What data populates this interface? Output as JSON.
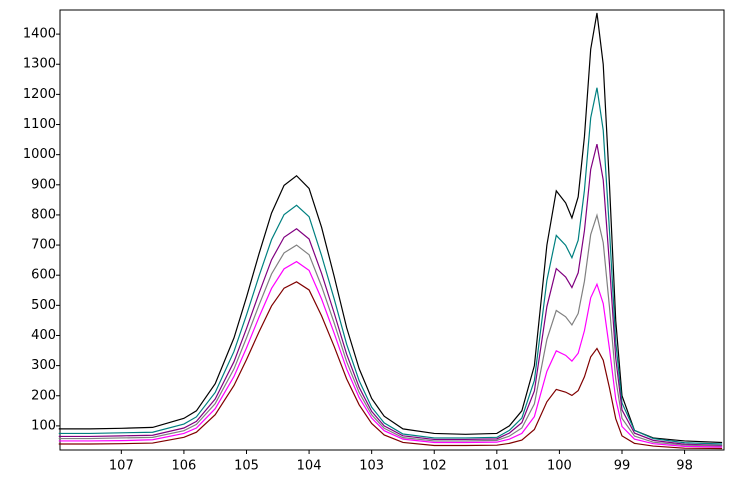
{
  "chart_data": {
    "type": "line",
    "x": [
      108,
      107.5,
      107,
      106.5,
      106,
      105.8,
      105.5,
      105.2,
      105,
      104.8,
      104.6,
      104.4,
      104.2,
      104,
      103.8,
      103.6,
      103.4,
      103.2,
      103,
      102.8,
      102.5,
      102,
      101.5,
      101,
      100.8,
      100.6,
      100.4,
      100.2,
      100.05,
      99.9,
      99.8,
      99.7,
      99.6,
      99.5,
      99.4,
      99.3,
      99.2,
      99.1,
      99,
      98.8,
      98.5,
      98,
      97.4
    ],
    "series": [
      {
        "color": "#000000",
        "values": [
          90,
          90,
          92,
          95,
          125,
          150,
          240,
          392,
          527,
          671,
          806,
          898,
          930,
          888,
          759,
          597,
          426,
          290,
          191,
          132,
          90,
          75,
          72,
          75,
          100,
          150,
          300,
          700,
          880,
          840,
          790,
          860,
          1060,
          1350,
          1470,
          1300,
          900,
          450,
          200,
          85,
          60,
          50,
          45
        ]
      },
      {
        "color": "#008080",
        "values": [
          75,
          75,
          77,
          79,
          106,
          130,
          211,
          347,
          468,
          597,
          718,
          801,
          832,
          794,
          665,
          522,
          371,
          250,
          162,
          110,
          73,
          60,
          60,
          62,
          85,
          126,
          251,
          583,
          732,
          699,
          658,
          716,
          882,
          1122,
          1222,
          1081,
          749,
          380,
          176,
          85,
          58,
          44,
          40
        ]
      },
      {
        "color": "#800080",
        "values": [
          65,
          65,
          67,
          69,
          93,
          115,
          189,
          313,
          423,
          540,
          651,
          726,
          754,
          720,
          606,
          475,
          338,
          228,
          148,
          100,
          67,
          55,
          55,
          57,
          76,
          111,
          216,
          496,
          622,
          594,
          559,
          608,
          748,
          951,
          1035,
          916,
          636,
          325,
          153,
          76,
          52,
          39,
          35
        ]
      },
      {
        "color": "#808080",
        "values": [
          58,
          58,
          60,
          62,
          84,
          105,
          174,
          289,
          392,
          501,
          604,
          674,
          700,
          668,
          563,
          442,
          313,
          211,
          137,
          92,
          61,
          50,
          50,
          52,
          66,
          93,
          173,
          387,
          483,
          462,
          435,
          473,
          580,
          735,
          799,
          708,
          494,
          256,
          125,
          66,
          46,
          36,
          33
        ]
      },
      {
        "color": "#ff00ff",
        "values": [
          50,
          50,
          51,
          54,
          75,
          93,
          157,
          264,
          359,
          461,
          556,
          621,
          645,
          616,
          521,
          408,
          289,
          194,
          126,
          84,
          56,
          45,
          45,
          46,
          56,
          75,
          131,
          281,
          349,
          334,
          315,
          341,
          416,
          525,
          570,
          506,
          356,
          189,
          98,
          56,
          41,
          32,
          30
        ]
      },
      {
        "color": "#800000",
        "values": [
          40,
          40,
          41,
          43,
          62,
          79,
          137,
          234,
          320,
          412,
          498,
          557,
          578,
          551,
          465,
          364,
          256,
          170,
          108,
          70,
          45,
          35,
          35,
          36,
          42,
          53,
          88,
          180,
          221,
          212,
          201,
          217,
          263,
          329,
          357,
          318,
          226,
          124,
          67,
          42,
          33,
          26,
          25
        ]
      }
    ],
    "xlim": [
      107.98,
      97.37
    ],
    "xticks": [
      107,
      106,
      105,
      104,
      103,
      102,
      101,
      100,
      99,
      98
    ],
    "ylim": [
      20,
      1480
    ],
    "yticks": [
      100,
      200,
      300,
      400,
      500,
      600,
      700,
      800,
      900,
      1000,
      1100,
      1200,
      1300,
      1400
    ],
    "grid": false
  }
}
